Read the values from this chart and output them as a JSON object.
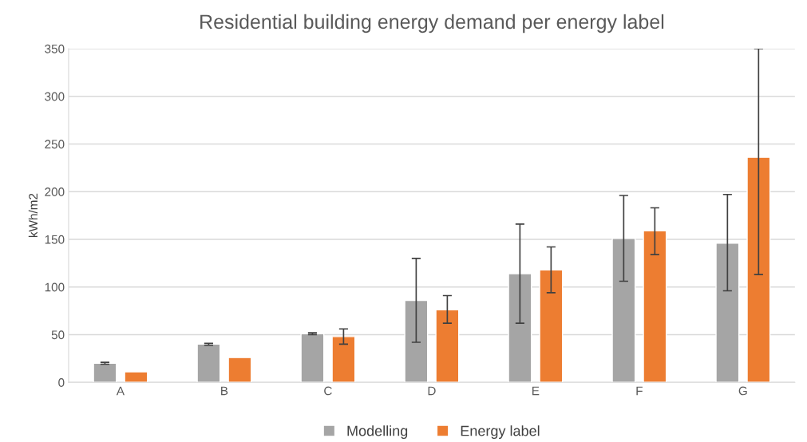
{
  "chart_data": {
    "type": "bar",
    "title": "Residential building energy demand per energy label",
    "ylabel": "kWh/m2",
    "categories": [
      "A",
      "B",
      "C",
      "D",
      "E",
      "F",
      "G"
    ],
    "series": [
      {
        "name": "Modelling",
        "color": "#a5a5a5",
        "values": [
          20,
          40,
          51,
          86,
          114,
          151,
          146
        ],
        "errors": [
          [
            19,
            21
          ],
          [
            39,
            41
          ],
          [
            50,
            52
          ],
          [
            42,
            130
          ],
          [
            62,
            166
          ],
          [
            106,
            196
          ],
          [
            96,
            197
          ]
        ]
      },
      {
        "name": "Energy label",
        "color": "#ed7d31",
        "values": [
          11,
          26,
          48,
          76,
          118,
          159,
          236
        ],
        "errors": [
          null,
          null,
          [
            40,
            56
          ],
          [
            62,
            91
          ],
          [
            94,
            142
          ],
          [
            134,
            183
          ],
          [
            113,
            350
          ]
        ]
      }
    ],
    "ylim": [
      0,
      350
    ],
    "yticks": [
      0,
      50,
      100,
      150,
      200,
      250,
      300,
      350
    ],
    "grid": "y",
    "legend": "bottom"
  }
}
